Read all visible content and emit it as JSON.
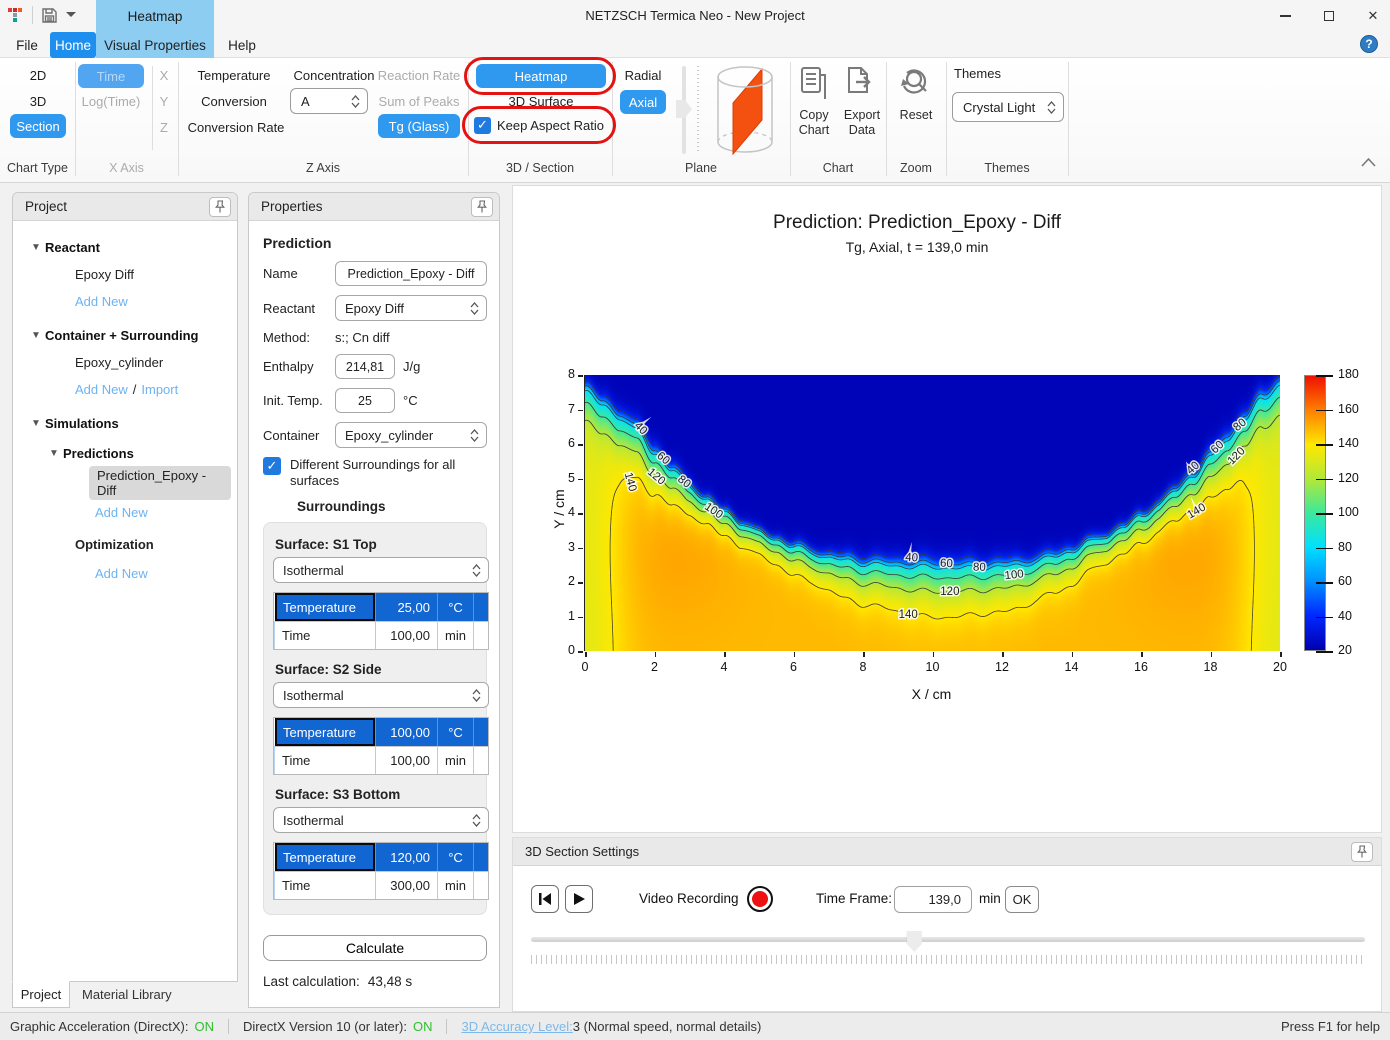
{
  "window": {
    "title": "NETZSCH Termica Neo - New Project"
  },
  "contextual_tab": "Heatmap",
  "menu_tabs": {
    "file": "File",
    "home": "Home",
    "visual_properties": "Visual Properties",
    "help": "Help"
  },
  "ribbon": {
    "chart_type": {
      "caption": "Chart Type",
      "btn_2d": "2D",
      "btn_3d": "3D",
      "btn_section": "Section"
    },
    "x_axis": {
      "caption": "X Axis",
      "time": "Time",
      "log_time": "Log(Time)",
      "x": "X",
      "y": "Y",
      "z": "Z"
    },
    "z_axis": {
      "caption": "Z Axis",
      "temperature": "Temperature",
      "conversion": "Conversion",
      "conversion_rate": "Conversion Rate",
      "concentration": "Concentration",
      "concentration_value": "A",
      "reaction_rate": "Reaction Rate",
      "sum_of_peaks": "Sum of Peaks",
      "tg_glass": "Tg (Glass)"
    },
    "section3d": {
      "caption": "3D / Section",
      "heatmap": "Heatmap",
      "surface3d": "3D Surface",
      "keep_aspect_ratio": "Keep Aspect Ratio"
    },
    "plane": {
      "caption": "Plane",
      "radial": "Radial",
      "axial": "Axial"
    },
    "chart": {
      "caption": "Chart",
      "copy_chart": "Copy Chart",
      "export_data": "Export Data"
    },
    "zoom": {
      "caption": "Zoom",
      "reset": "Reset"
    },
    "themes": {
      "caption": "Themes",
      "label": "Themes",
      "value": "Crystal Light"
    }
  },
  "project_panel": {
    "title": "Project",
    "reactant_header": "Reactant",
    "reactant_item": "Epoxy Diff",
    "add_new": "Add New",
    "container_header": "Container + Surrounding",
    "container_item": "Epoxy_cylinder",
    "slash": "/",
    "import_label": "Import",
    "simulations_header": "Simulations",
    "predictions_header": "Predictions",
    "prediction_item": "Prediction_Epoxy - Diff",
    "optimization_header": "Optimization",
    "tabs": {
      "project": "Project",
      "material_library": "Material Library"
    }
  },
  "properties": {
    "title": "Properties",
    "section_title": "Prediction",
    "name_label": "Name",
    "name_value": "Prediction_Epoxy - Diff",
    "reactant_label": "Reactant",
    "reactant_value": "Epoxy Diff",
    "method_label": "Method:",
    "method_value": "s:; Cn diff",
    "enthalpy_label": "Enthalpy",
    "enthalpy_value": "214,81",
    "enthalpy_unit": "J/g",
    "init_temp_label": "Init. Temp.",
    "init_temp_value": "25",
    "init_temp_unit": "°C",
    "container_label": "Container",
    "container_value": "Epoxy_cylinder",
    "diff_surroundings": "Different Surroundings for all surfaces",
    "surroundings_title": "Surroundings",
    "surfaces": [
      {
        "title": "Surface: S1 Top",
        "mode": "Isothermal",
        "rows": [
          [
            "Temperature",
            "25,00",
            "°C"
          ],
          [
            "Time",
            "100,00",
            "min"
          ]
        ]
      },
      {
        "title": "Surface: S2 Side",
        "mode": "Isothermal",
        "rows": [
          [
            "Temperature",
            "100,00",
            "°C"
          ],
          [
            "Time",
            "100,00",
            "min"
          ]
        ]
      },
      {
        "title": "Surface: S3 Bottom",
        "mode": "Isothermal",
        "rows": [
          [
            "Temperature",
            "120,00",
            "°C"
          ],
          [
            "Time",
            "300,00",
            "min"
          ]
        ]
      }
    ],
    "calculate": "Calculate",
    "last_calc_label": "Last calculation:",
    "last_calc_value": "43,48 s"
  },
  "section_settings": {
    "title": "3D Section Settings",
    "video_recording": "Video Recording",
    "time_frame_label": "Time Frame:",
    "time_frame_value": "139,0",
    "unit": "min",
    "ok": "OK",
    "slider_percent": 45.9
  },
  "status_bar": {
    "graphic_accel": "Graphic Acceleration (DirectX):",
    "graphic_accel_state": "ON",
    "directx": "DirectX Version 10 (or later):",
    "directx_state": "ON",
    "accuracy_link": "3D Accuracy Level:",
    "accuracy_value": "3 (Normal speed, normal details)",
    "help_hint": "Press F1 for help"
  },
  "chart_data": {
    "type": "heatmap",
    "title": "Prediction: Prediction_Epoxy - Diff",
    "subtitle": "Tg, Axial, t = 139,0 min",
    "xlabel": "X / cm",
    "ylabel": "Y / cm",
    "x_range": [
      0,
      20
    ],
    "y_range": [
      0,
      8
    ],
    "x_ticks": [
      0,
      2,
      4,
      6,
      8,
      10,
      12,
      14,
      16,
      18,
      20
    ],
    "y_ticks": [
      0,
      1,
      2,
      3,
      4,
      5,
      6,
      7,
      8
    ],
    "value_range": [
      20,
      180
    ],
    "colorbar_ticks": [
      20,
      40,
      60,
      80,
      100,
      120,
      140,
      160,
      180
    ],
    "colormap": [
      [
        20,
        "#0000B0"
      ],
      [
        40,
        "#0028FF"
      ],
      [
        60,
        "#0090FF"
      ],
      [
        80,
        "#00E0FF"
      ],
      [
        100,
        "#3CE89C"
      ],
      [
        120,
        "#B4E838"
      ],
      [
        140,
        "#FFE800"
      ],
      [
        160,
        "#FF8000"
      ],
      [
        180,
        "#F01000"
      ]
    ],
    "contour_levels": [
      40,
      60,
      80,
      100,
      120,
      140
    ],
    "field": {
      "t_cold": 22,
      "t_hot": 149,
      "edge_cool_amp": 16,
      "edge_cool_width": 1.1,
      "w_up_factor": 0.32,
      "front_x": [
        0,
        0.5,
        1,
        1.5,
        2,
        2.5,
        3,
        3.5,
        4,
        4.5,
        5,
        5.5,
        6,
        6.5,
        7,
        7.5,
        8,
        9,
        10,
        11,
        12,
        12.5,
        13,
        13.5,
        14,
        14.5,
        15,
        15.5,
        16,
        16.5,
        17,
        17.5,
        18,
        18.5,
        19,
        19.5,
        20
      ],
      "front_y": [
        7.55,
        7.15,
        6.75,
        6.35,
        5.7,
        5.2,
        4.75,
        4.35,
        4.0,
        3.7,
        3.4,
        3.2,
        3.0,
        2.82,
        2.68,
        2.58,
        2.5,
        2.42,
        2.38,
        2.36,
        2.4,
        2.45,
        2.55,
        2.7,
        2.85,
        3.1,
        3.3,
        3.55,
        3.85,
        4.2,
        4.6,
        5.05,
        5.55,
        6.1,
        6.7,
        7.3,
        7.75
      ],
      "width_x": [
        0,
        1,
        1.7,
        2.5,
        3.5,
        5,
        6.5,
        8,
        10,
        12,
        13.5,
        15,
        16.5,
        17.5,
        18.3,
        19,
        20
      ],
      "width_w": [
        0.45,
        0.5,
        0.52,
        0.42,
        0.3,
        0.26,
        0.33,
        0.45,
        0.55,
        0.5,
        0.4,
        0.3,
        0.33,
        0.42,
        0.52,
        0.5,
        0.45
      ],
      "wiggles": [
        [
          0.05,
          5.3,
          0
        ],
        [
          0.04,
          9.1,
          1.0
        ]
      ],
      "hot_spots": [
        [
          2.6,
          3.0,
          1.3,
          1.6,
          4
        ],
        [
          17.4,
          3.0,
          1.3,
          1.6,
          4
        ]
      ]
    },
    "contour_labels": [
      [
        40,
        1.6,
        6.45,
        46
      ],
      [
        60,
        2.25,
        5.58,
        40
      ],
      [
        120,
        2.05,
        5.05,
        40
      ],
      [
        80,
        2.85,
        4.9,
        38
      ],
      [
        100,
        3.7,
        4.06,
        34
      ],
      [
        140,
        1.3,
        4.9,
        75
      ],
      [
        40,
        9.4,
        2.7,
        4
      ],
      [
        60,
        10.4,
        2.53,
        3
      ],
      [
        80,
        11.35,
        2.42,
        2
      ],
      [
        100,
        12.35,
        2.2,
        -6
      ],
      [
        120,
        10.5,
        1.72,
        0
      ],
      [
        140,
        9.3,
        1.05,
        0
      ],
      [
        40,
        17.5,
        5.3,
        -42
      ],
      [
        60,
        18.2,
        5.9,
        -42
      ],
      [
        80,
        18.85,
        6.55,
        -40
      ],
      [
        120,
        18.75,
        5.65,
        -45
      ],
      [
        140,
        17.6,
        4.05,
        -30
      ]
    ]
  }
}
